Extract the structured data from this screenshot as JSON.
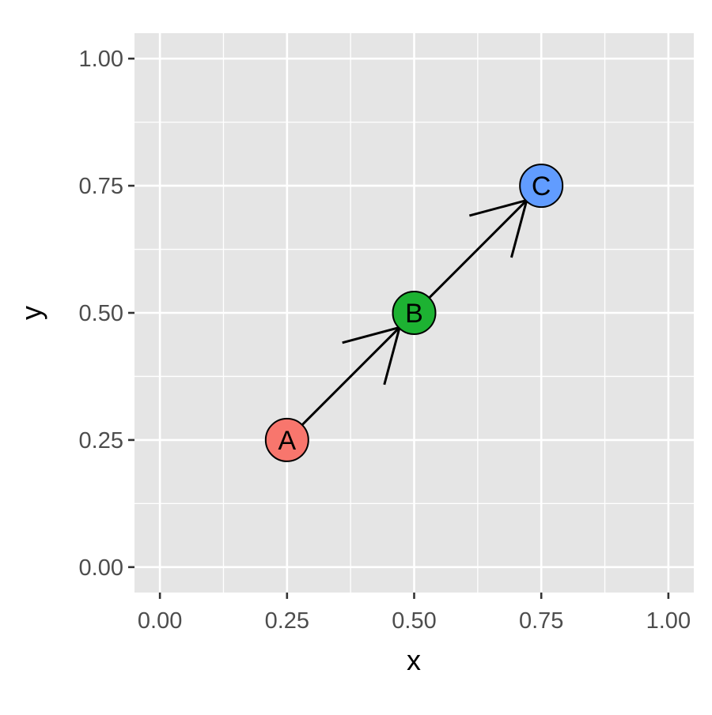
{
  "chart_data": {
    "type": "scatter",
    "xlabel": "x",
    "ylabel": "y",
    "xlim": [
      -0.05,
      1.05
    ],
    "ylim": [
      -0.05,
      1.05
    ],
    "x_ticks": [
      "0.00",
      "0.25",
      "0.50",
      "0.75",
      "1.00"
    ],
    "y_ticks": [
      "0.00",
      "0.25",
      "0.50",
      "0.75",
      "1.00"
    ],
    "grid": true,
    "nodes": [
      {
        "label": "A",
        "x": 0.25,
        "y": 0.25,
        "color": "#F8766D"
      },
      {
        "label": "B",
        "x": 0.5,
        "y": 0.5,
        "color": "#1DB232"
      },
      {
        "label": "C",
        "x": 0.75,
        "y": 0.75,
        "color": "#619CFF"
      }
    ],
    "edges": [
      {
        "from": "A",
        "to": "B",
        "arrow": "open"
      },
      {
        "from": "B",
        "to": "C",
        "arrow": "open"
      }
    ],
    "colors": {
      "panel": "#E5E5E5",
      "grid": "#FFFFFF",
      "edge": "#000000"
    }
  }
}
